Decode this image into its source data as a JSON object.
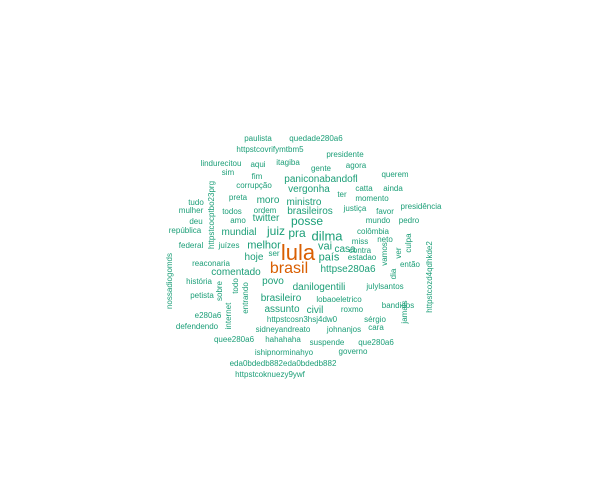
{
  "cloud": {
    "colors": {
      "top": "#d95f02",
      "mid": "#1b9e77"
    },
    "words": [
      {
        "text": "lula",
        "level": "top"
      },
      {
        "text": "brasil",
        "level": "top"
      },
      {
        "text": "dilma",
        "level": "mid"
      },
      {
        "text": "posse",
        "level": "mid"
      },
      {
        "text": "juiz",
        "level": "mid"
      },
      {
        "text": "pra",
        "level": "mid"
      },
      {
        "text": "vai",
        "level": "mid"
      },
      {
        "text": "país",
        "level": "mid"
      },
      {
        "text": "melhor",
        "level": "mid"
      },
      {
        "text": "hoje",
        "level": "mid"
      },
      {
        "text": "mundial",
        "level": "mid"
      },
      {
        "text": "comentado",
        "level": "mid"
      },
      {
        "text": "povo",
        "level": "mid"
      },
      {
        "text": "brasileiro",
        "level": "mid"
      },
      {
        "text": "brasileiros",
        "level": "mid"
      },
      {
        "text": "twitter",
        "level": "mid"
      },
      {
        "text": "vergonha",
        "level": "mid"
      },
      {
        "text": "ministro",
        "level": "mid"
      },
      {
        "text": "moro",
        "level": "mid"
      },
      {
        "text": "casa",
        "level": "mid"
      },
      {
        "text": "assunto",
        "level": "mid"
      },
      {
        "text": "civil",
        "level": "mid"
      },
      {
        "text": "httpse280a6",
        "level": "mid"
      },
      {
        "text": "danilogentili",
        "level": "mid"
      },
      {
        "text": "paniconabandofl",
        "level": "mid"
      },
      {
        "text": "paulista",
        "level": "low"
      },
      {
        "text": "quedade280a6",
        "level": "low"
      },
      {
        "text": "httpstcovrifymtbm5",
        "level": "low"
      },
      {
        "text": "presidente",
        "level": "low"
      },
      {
        "text": "lindurecitou",
        "level": "low"
      },
      {
        "text": "aqui",
        "level": "low"
      },
      {
        "text": "itagiba",
        "level": "low"
      },
      {
        "text": "gente",
        "level": "low"
      },
      {
        "text": "agora",
        "level": "low"
      },
      {
        "text": "sim",
        "level": "low"
      },
      {
        "text": "fim",
        "level": "low"
      },
      {
        "text": "querem",
        "level": "low"
      },
      {
        "text": "corrupção",
        "level": "low"
      },
      {
        "text": "catta",
        "level": "low"
      },
      {
        "text": "ainda",
        "level": "low"
      },
      {
        "text": "ter",
        "level": "low"
      },
      {
        "text": "momento",
        "level": "low"
      },
      {
        "text": "preta",
        "level": "low"
      },
      {
        "text": "tudo",
        "level": "low"
      },
      {
        "text": "presidência",
        "level": "low"
      },
      {
        "text": "mulher",
        "level": "low"
      },
      {
        "text": "todos",
        "level": "low"
      },
      {
        "text": "ordem",
        "level": "low"
      },
      {
        "text": "justiça",
        "level": "low"
      },
      {
        "text": "favor",
        "level": "low"
      },
      {
        "text": "deu",
        "level": "low"
      },
      {
        "text": "amo",
        "level": "low"
      },
      {
        "text": "mundo",
        "level": "low"
      },
      {
        "text": "pedro",
        "level": "low"
      },
      {
        "text": "república",
        "level": "low"
      },
      {
        "text": "colômbia",
        "level": "low"
      },
      {
        "text": "federal",
        "level": "low"
      },
      {
        "text": "juízes",
        "level": "low"
      },
      {
        "text": "ser",
        "level": "low"
      },
      {
        "text": "miss",
        "level": "low"
      },
      {
        "text": "neto",
        "level": "low"
      },
      {
        "text": "contra",
        "level": "low"
      },
      {
        "text": "estadao",
        "level": "low"
      },
      {
        "text": "então",
        "level": "low"
      },
      {
        "text": "reaconaria",
        "level": "low"
      },
      {
        "text": "história",
        "level": "low"
      },
      {
        "text": "julylsantos",
        "level": "low"
      },
      {
        "text": "petista",
        "level": "low"
      },
      {
        "text": "lobaoeletrico",
        "level": "low"
      },
      {
        "text": "bandidos",
        "level": "low"
      },
      {
        "text": "e280a6",
        "level": "low"
      },
      {
        "text": "httpstcosn3hsj4dw0",
        "level": "low"
      },
      {
        "text": "sérgio",
        "level": "low"
      },
      {
        "text": "roxmo",
        "level": "low"
      },
      {
        "text": "defendendo",
        "level": "low"
      },
      {
        "text": "sidneyandreato",
        "level": "low"
      },
      {
        "text": "johnanjos",
        "level": "low"
      },
      {
        "text": "cara",
        "level": "low"
      },
      {
        "text": "quee280a6",
        "level": "low"
      },
      {
        "text": "hahahaha",
        "level": "low"
      },
      {
        "text": "suspende",
        "level": "low"
      },
      {
        "text": "que280a6",
        "level": "low"
      },
      {
        "text": "ishipnorminahyo",
        "level": "low"
      },
      {
        "text": "governo",
        "level": "low"
      },
      {
        "text": "eda0bdedb882eda0bdedb882",
        "level": "low"
      },
      {
        "text": "httpstcoknuezy9ywf",
        "level": "low"
      },
      {
        "text": "httpstcocptbo23prg",
        "level": "low"
      },
      {
        "text": "sobre",
        "level": "low"
      },
      {
        "text": "todo",
        "level": "low"
      },
      {
        "text": "entrando",
        "level": "low"
      },
      {
        "text": "internet",
        "level": "low"
      },
      {
        "text": "vamos",
        "level": "low"
      },
      {
        "text": "dia",
        "level": "low"
      },
      {
        "text": "ver",
        "level": "low"
      },
      {
        "text": "culpa",
        "level": "low"
      },
      {
        "text": "jamais",
        "level": "low"
      },
      {
        "text": "httpstcozd4qdhkde2",
        "level": "low"
      },
      {
        "text": "nossadiogomds",
        "level": "low"
      }
    ]
  }
}
